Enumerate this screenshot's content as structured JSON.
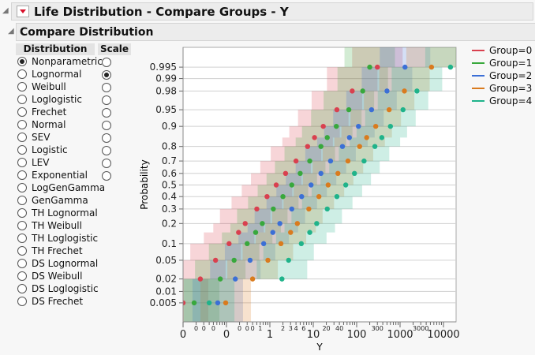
{
  "header": {
    "title": "Life Distribution - Compare Groups - Y",
    "section": "Compare Distribution"
  },
  "panel": {
    "dist_header": "Distribution",
    "scale_header": "Scale",
    "distributions": [
      "Nonparametric",
      "Lognormal",
      "Weibull",
      "Loglogistic",
      "Frechet",
      "Normal",
      "SEV",
      "Logistic",
      "LEV",
      "Exponential",
      "LogGenGamma",
      "GenGamma",
      "TH Lognormal",
      "TH Weibull",
      "TH Loglogistic",
      "TH Frechet",
      "DS Lognormal",
      "DS Weibull",
      "DS Loglogistic",
      "DS Frechet"
    ],
    "selected_distribution": "Nonparametric",
    "scale_count": 10,
    "selected_scale": "Lognormal"
  },
  "chart_data": {
    "type": "scatter",
    "xlabel": "Y",
    "ylabel": "Probability",
    "xscale": "log",
    "yscale": "lognormal probability",
    "grid": "horizontal",
    "legend": "right",
    "yticks": [
      "0.995",
      "0.99",
      "0.98",
      "0.95",
      "0.9",
      "0.8",
      "0.7",
      "0.6",
      "0.5",
      "0.4",
      "0.3",
      "0.2",
      "0.1",
      "0.05",
      "0.02",
      "0.01",
      "0.005"
    ],
    "xticks_major": [
      {
        "v": 0.01,
        "label": "0"
      },
      {
        "v": 0.1,
        "label": "0"
      },
      {
        "v": 1,
        "label": "1"
      },
      {
        "v": 10,
        "label": "10"
      },
      {
        "v": 100,
        "label": "100"
      },
      {
        "v": 1000,
        "label": "1000"
      },
      {
        "v": 10000,
        "label": "10000"
      }
    ],
    "xticks_minor": [
      {
        "v": 0.02,
        "label": "0"
      },
      {
        "v": 0.03,
        "label": "0"
      },
      {
        "v": 0.05,
        "label": "0"
      },
      {
        "v": 0.2,
        "label": "0"
      },
      {
        "v": 0.3,
        "label": "0"
      },
      {
        "v": 0.4,
        "label": "0"
      },
      {
        "v": 0.6,
        "label": "1"
      },
      {
        "v": 2,
        "label": "2"
      },
      {
        "v": 3,
        "label": "3"
      },
      {
        "v": 4,
        "label": "4"
      },
      {
        "v": 6,
        "label": "6"
      },
      {
        "v": 20,
        "label": "20"
      },
      {
        "v": 40,
        "label": "40"
      },
      {
        "v": 300,
        "label": "300"
      },
      {
        "v": 3000,
        "label": "3000"
      }
    ],
    "probabilities": [
      0.005,
      0.02,
      0.05,
      0.1,
      0.15,
      0.2,
      0.3,
      0.4,
      0.5,
      0.6,
      0.7,
      0.8,
      0.85,
      0.9,
      0.95,
      0.98,
      0.995
    ],
    "series": [
      {
        "name": "Group=0",
        "color": "#d9404f",
        "values": [
          0.01,
          0.025,
          0.056,
          0.115,
          0.19,
          0.27,
          0.5,
          0.86,
          1.4,
          2.3,
          4,
          7.4,
          10.7,
          17,
          35,
          79,
          300
        ]
      },
      {
        "name": "Group=1",
        "color": "#38a83c",
        "values": [
          0.018,
          0.072,
          0.15,
          0.3,
          0.47,
          0.67,
          1.2,
          2,
          3.2,
          5,
          8.3,
          15,
          21,
          34,
          66,
          138,
          200
        ]
      },
      {
        "name": "Group=2",
        "color": "#3b6fd6",
        "values": [
          0.063,
          0.16,
          0.35,
          0.72,
          1.17,
          1.7,
          3.2,
          5.4,
          8.9,
          15,
          25,
          47,
          68,
          110,
          220,
          500,
          1300
        ]
      },
      {
        "name": "Group=3",
        "color": "#d97b1e",
        "values": [
          0.096,
          0.4,
          0.9,
          1.8,
          3,
          4.3,
          7.9,
          13.5,
          22,
          37,
          63,
          117,
          170,
          275,
          560,
          1260,
          5300
        ]
      },
      {
        "name": "Group=4",
        "color": "#1fb38a",
        "values": [
          0.04,
          1.9,
          2.7,
          5.3,
          8.3,
          12,
          21,
          35,
          56,
          89,
          148,
          263,
          380,
          600,
          1170,
          2450,
          14500
        ]
      }
    ]
  }
}
